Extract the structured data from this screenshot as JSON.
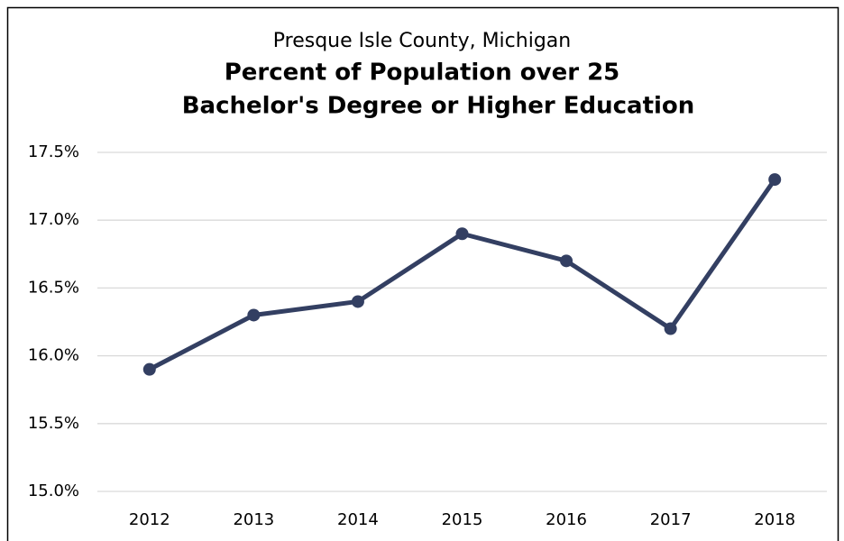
{
  "chart_data": {
    "type": "line",
    "subtitle": "Presque Isle County, Michigan",
    "title": [
      "Percent of Population over 25",
      "Bachelor's Degree or Higher Education"
    ],
    "categories": [
      "2012",
      "2013",
      "2014",
      "2015",
      "2016",
      "2017",
      "2018"
    ],
    "values": [
      15.9,
      16.3,
      16.4,
      16.9,
      16.7,
      16.2,
      17.3
    ],
    "color": "#333f62",
    "ylim": [
      15,
      17.5
    ],
    "yticks": [
      {
        "value": 15,
        "label": "15.0%"
      },
      {
        "value": 15.5,
        "label": "15.5%"
      },
      {
        "value": 16,
        "label": "16.0%"
      },
      {
        "value": 16.5,
        "label": "16.5%"
      },
      {
        "value": 17,
        "label": "17.0%"
      },
      {
        "value": 17.5,
        "label": "17.5%"
      }
    ],
    "grid": true
  }
}
